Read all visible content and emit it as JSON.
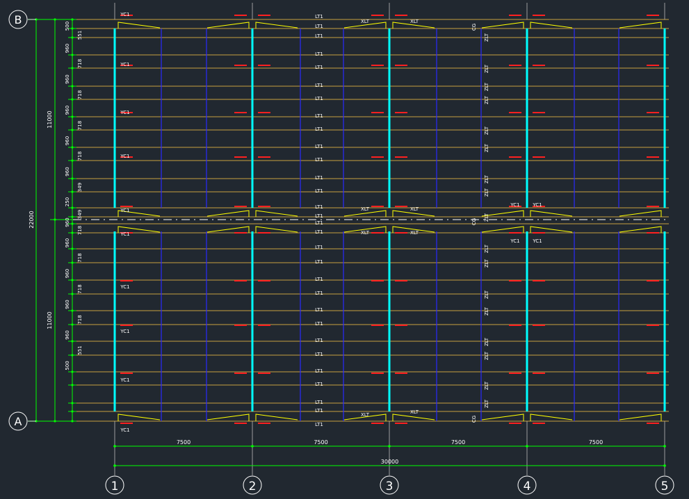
{
  "axes_rows": [
    {
      "label": "B"
    },
    {
      "label": "A"
    }
  ],
  "axes_cols": [
    {
      "label": "1"
    },
    {
      "label": "2"
    },
    {
      "label": "3"
    },
    {
      "label": "4"
    },
    {
      "label": "5"
    }
  ],
  "overall_width_dim": "30000",
  "span_dims": [
    "7500",
    "7500",
    "7500",
    "7500"
  ],
  "overall_height_dim": "22000",
  "half_height_dims": [
    "11000",
    "11000"
  ],
  "purlin_spacing_labels": [
    "500",
    "551",
    "960",
    "718",
    "960",
    "718",
    "960",
    "718",
    "960",
    "718",
    "960",
    "349",
    "250",
    "349",
    "960",
    "718",
    "960",
    "718",
    "960",
    "718",
    "960",
    "718",
    "960",
    "551",
    "500"
  ],
  "member_labels": {
    "tie_rod": "LT1",
    "diag_tie": "XLT",
    "gable_tie": "ZLT",
    "strut": "CG",
    "corner_brace": "YC1"
  },
  "colors": {
    "background": "#212830",
    "grid_line": "#ffffff",
    "dimension": "#00ff00",
    "purlin": "#c8a040",
    "main_frame": "#00ffff",
    "secondary": "#2a2aff",
    "brace": "#ffff00",
    "tick_mark": "#ff2020"
  }
}
